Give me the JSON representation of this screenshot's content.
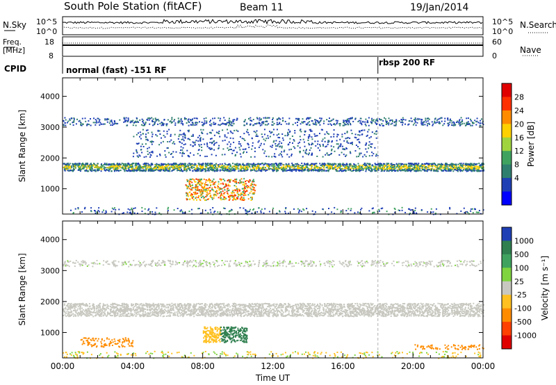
{
  "header": {
    "station": "South Pole Station (fitACF)",
    "beam": "Beam 11",
    "date": "19/Jan/2014"
  },
  "side_labels": {
    "nsky": "N.Sky",
    "nsearch": "N.Search",
    "freq_line1": "Freq.",
    "freq_line2": "[MHz]",
    "nave": "Nave",
    "cpid": "CPID"
  },
  "top_strip": {
    "left_ticks": [
      "10^5",
      "10^0"
    ],
    "right_ticks": [
      "10^5",
      "10^0"
    ]
  },
  "freq_strip": {
    "left_ticks": [
      "18",
      "8"
    ],
    "right_ticks": [
      "60",
      "0"
    ]
  },
  "cpid_strip": {
    "segments": [
      {
        "label": "normal (fast) -151 RF",
        "start_hour": 0
      },
      {
        "label": "rbsp 200 RF",
        "start_hour": 18
      }
    ]
  },
  "chart_data": [
    {
      "type": "heatmap",
      "title": "",
      "ylabel": "Slant Range [km]",
      "xlabel": "",
      "xlim_hours": [
        0,
        24
      ],
      "ylim": [
        180,
        4600
      ],
      "y_ticks": [
        1000,
        2000,
        3000,
        4000
      ],
      "colorbar": {
        "label": "Power [dB]",
        "range": [
          0,
          32
        ],
        "ticks": [
          "4",
          "8",
          "12",
          "16",
          "20",
          "24",
          "28"
        ],
        "colors": [
          "#0000ff",
          "#1f3fb5",
          "#2f7f6f",
          "#3fa35f",
          "#9fd43f",
          "#ffd000",
          "#ff8c00",
          "#ff3000",
          "#e00000"
        ]
      }
    },
    {
      "type": "heatmap",
      "title": "",
      "ylabel": "Slant Range [km]",
      "xlabel": "Time UT",
      "xlim_hours": [
        0,
        24
      ],
      "ylim": [
        180,
        4600
      ],
      "y_ticks": [
        1000,
        2000,
        3000,
        4000
      ],
      "x_ticks": [
        "00:00",
        "04:00",
        "08:00",
        "12:00",
        "16:00",
        "20:00",
        "00:00"
      ],
      "colorbar": {
        "label": "Velocity [m s⁻¹]",
        "ticks": [
          "1000",
          "500",
          "100",
          "25",
          "-25",
          "-100",
          "-500",
          "-1000"
        ],
        "colors": [
          "#1f3fb5",
          "#2f7f4f",
          "#3fa35f",
          "#7fd43f",
          "#c8c8c0",
          "#ffc020",
          "#ff8c00",
          "#ff4000",
          "#e00000"
        ]
      }
    }
  ]
}
